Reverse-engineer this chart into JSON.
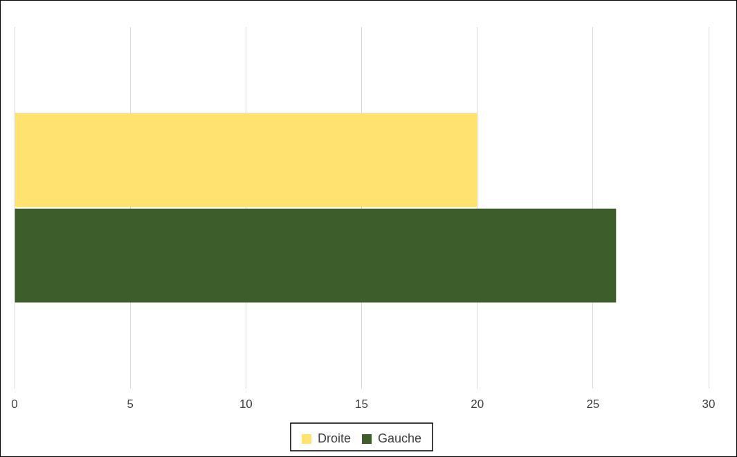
{
  "chart_data": {
    "type": "bar",
    "orientation": "horizontal",
    "categories": [
      null
    ],
    "series": [
      {
        "name": "Droite",
        "color": "#ffe270",
        "values": [
          20
        ]
      },
      {
        "name": "Gauche",
        "color": "#3d5e2a",
        "values": [
          26
        ]
      }
    ],
    "xlim": [
      0,
      30
    ],
    "xticks": [
      0,
      5,
      10,
      15,
      20,
      25,
      30
    ],
    "grid": "x",
    "legend": "bottom",
    "tick_labels": "x"
  }
}
